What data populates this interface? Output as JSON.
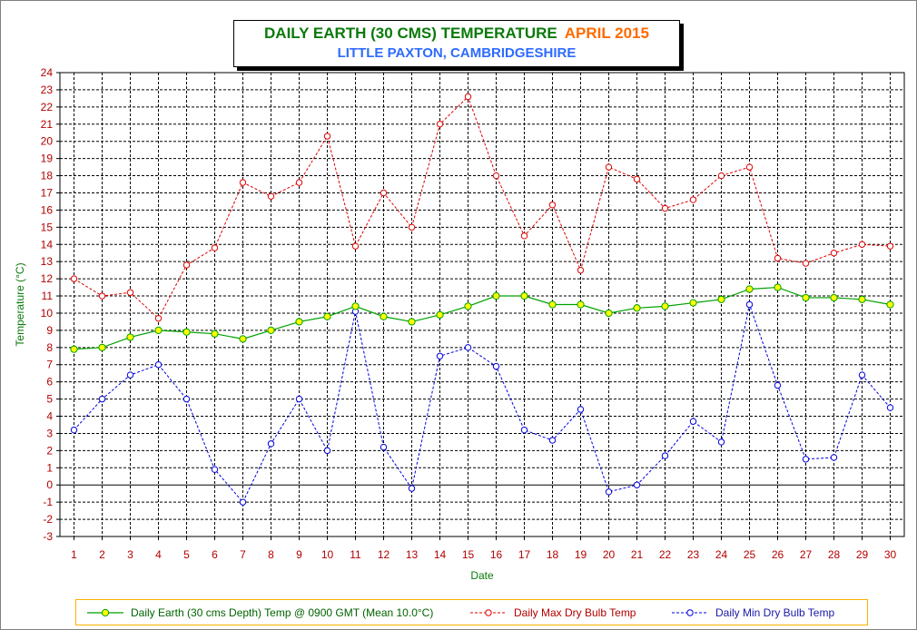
{
  "title": {
    "main": "DAILY EARTH (30 CMS) TEMPERATURE",
    "month": "APRIL 2015",
    "subtitle": "LITTLE PAXTON, CAMBRIDGESHIRE"
  },
  "colors": {
    "earth": "#00a000",
    "earth_marker": "#ffff00",
    "max": "#e00000",
    "min": "#0000dd",
    "grid": "#000000",
    "title_green": "#0a7a0a",
    "title_orange": "#ff6a00",
    "title_blue": "#2e6bff",
    "legend_border": "#ffb000"
  },
  "chart_data": {
    "type": "line",
    "xlabel": "Date",
    "ylabel": "Temperature (°C)",
    "ylim": [
      -3,
      24
    ],
    "yticks": [
      -3,
      -2,
      -1,
      0,
      1,
      2,
      3,
      4,
      5,
      6,
      7,
      8,
      9,
      10,
      11,
      12,
      13,
      14,
      15,
      16,
      17,
      18,
      19,
      20,
      21,
      22,
      23,
      24
    ],
    "x": [
      1,
      2,
      3,
      4,
      5,
      6,
      7,
      8,
      9,
      10,
      11,
      12,
      13,
      14,
      15,
      16,
      17,
      18,
      19,
      20,
      21,
      22,
      23,
      24,
      25,
      26,
      27,
      28,
      29,
      30
    ],
    "grid": true,
    "legend_position": "bottom",
    "series": [
      {
        "name": "Daily Earth (30 cms Depth) Temp @ 0900 GMT (Mean 10.0°C)",
        "style": "solid",
        "values": [
          7.9,
          8.0,
          8.6,
          9.0,
          8.9,
          8.8,
          8.5,
          9.0,
          9.5,
          9.8,
          10.4,
          9.8,
          9.5,
          9.9,
          10.4,
          11.0,
          11.0,
          10.5,
          10.5,
          10.0,
          10.3,
          10.4,
          10.6,
          10.8,
          11.4,
          11.5,
          10.9,
          10.9,
          10.8,
          10.5
        ]
      },
      {
        "name": "Daily Max Dry Bulb Temp",
        "style": "dashed",
        "values": [
          12.0,
          11.0,
          11.2,
          9.7,
          12.8,
          13.8,
          17.6,
          16.8,
          17.6,
          20.3,
          13.9,
          17.0,
          15.0,
          21.0,
          22.6,
          18.0,
          14.5,
          16.3,
          12.5,
          18.5,
          17.8,
          16.1,
          16.6,
          18.0,
          18.5,
          13.2,
          12.9,
          13.5,
          14.0,
          13.9
        ]
      },
      {
        "name": "Daily Min Dry Bulb Temp",
        "style": "dashed",
        "values": [
          3.2,
          5.0,
          6.4,
          7.0,
          5.0,
          0.9,
          -1.0,
          2.4,
          5.0,
          2.0,
          10.1,
          2.2,
          -0.2,
          7.5,
          8.0,
          6.9,
          3.2,
          2.6,
          4.4,
          -0.4,
          0.0,
          1.7,
          3.7,
          2.5,
          10.5,
          5.8,
          1.5,
          1.6,
          6.4,
          4.5
        ]
      }
    ]
  },
  "legend": {
    "earth": "Daily Earth (30 cms Depth) Temp @ 0900 GMT (Mean 10.0°C)",
    "max": "Daily Max Dry Bulb Temp",
    "min": "Daily Min Dry Bulb Temp"
  }
}
